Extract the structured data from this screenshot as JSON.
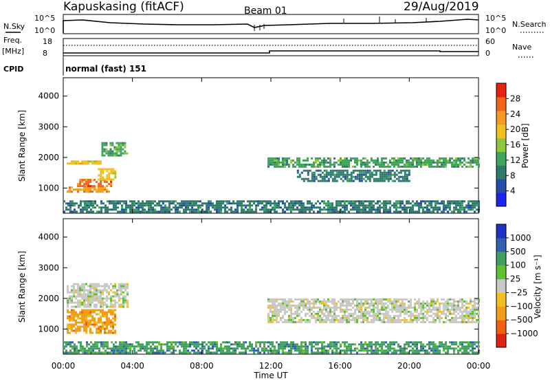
{
  "header": {
    "station": "Kapuskasing (fitACF)",
    "beam": "Beam 01",
    "date": "29/Aug/2019"
  },
  "panels": {
    "nsky_label": "N.Sky",
    "nsearch_label": "N.Search",
    "nsky_ticks": [
      "10^5",
      "10^0"
    ],
    "freq_label": "Freq.",
    "freq_unit": "[MHz]",
    "freq_ticks": [
      "18",
      "8"
    ],
    "nave_label": "Nave",
    "nave_ticks": [
      "60",
      "0"
    ],
    "cpid_label": "CPID",
    "cpid_text": "normal (fast) 151"
  },
  "chart_data": [
    {
      "type": "heatmap",
      "name": "power",
      "ylabel": "Slant Range [km]",
      "ylim": [
        180,
        4600
      ],
      "yticks": [
        1000,
        2000,
        3000,
        4000
      ],
      "colorbar": {
        "label": "Power [dB]",
        "ticks": [
          4,
          8,
          12,
          16,
          20,
          24,
          28
        ],
        "range": [
          0,
          32
        ],
        "colors": [
          "#1a26f0",
          "#234ea8",
          "#2f7a6a",
          "#3ea55c",
          "#8cc83a",
          "#f0c020",
          "#f39a20",
          "#f26418",
          "#e8200e"
        ]
      },
      "regions": [
        {
          "x": [
            0.2,
            2.2
          ],
          "y": [
            1820,
            1900
          ],
          "value": 18
        },
        {
          "x": [
            2.2,
            3.7
          ],
          "y": [
            2050,
            2500
          ],
          "value": 14
        },
        {
          "x": [
            0.2,
            2.6
          ],
          "y": [
            850,
            1050
          ],
          "value": 22
        },
        {
          "x": [
            0.8,
            2.8
          ],
          "y": [
            1050,
            1300
          ],
          "value": 28
        },
        {
          "x": [
            2.0,
            3.0
          ],
          "y": [
            1300,
            1650
          ],
          "value": 20
        },
        {
          "x": [
            11.8,
            24.0
          ],
          "y": [
            1700,
            2000
          ],
          "value": 12
        },
        {
          "x": [
            13.5,
            20.0
          ],
          "y": [
            1250,
            1600
          ],
          "value": 10
        },
        {
          "x": [
            0.0,
            24.0
          ],
          "y": [
            200,
            600
          ],
          "value": 8
        }
      ]
    },
    {
      "type": "heatmap",
      "name": "velocity",
      "ylabel": "Slant Range [km]",
      "ylim": [
        180,
        4600
      ],
      "yticks": [
        1000,
        2000,
        3000,
        4000
      ],
      "colorbar": {
        "label": "Velocity [m s⁻¹]",
        "ticks": [
          "1000",
          "500",
          "100",
          "25",
          "−25",
          "−100",
          "−500",
          "−1000"
        ],
        "colors": [
          "#2030c0",
          "#3060b0",
          "#40a060",
          "#60c030",
          "#c8c8c4",
          "#f0c020",
          "#f0a018",
          "#f06010",
          "#e02010"
        ]
      },
      "regions": [
        {
          "x": [
            0.2,
            3.7
          ],
          "y": [
            1750,
            2500
          ],
          "value": 0
        },
        {
          "x": [
            0.2,
            3.0
          ],
          "y": [
            850,
            1650
          ],
          "value": -100
        },
        {
          "x": [
            11.8,
            24.0
          ],
          "y": [
            1250,
            2000
          ],
          "value": 0
        },
        {
          "x": [
            0.0,
            24.0
          ],
          "y": [
            200,
            600
          ],
          "value": 100
        }
      ]
    }
  ],
  "xaxis": {
    "label": "Time UT",
    "ticks": [
      "00:00",
      "04:00",
      "08:00",
      "12:00",
      "16:00",
      "20:00",
      "00:00"
    ],
    "range": [
      0,
      24
    ]
  }
}
